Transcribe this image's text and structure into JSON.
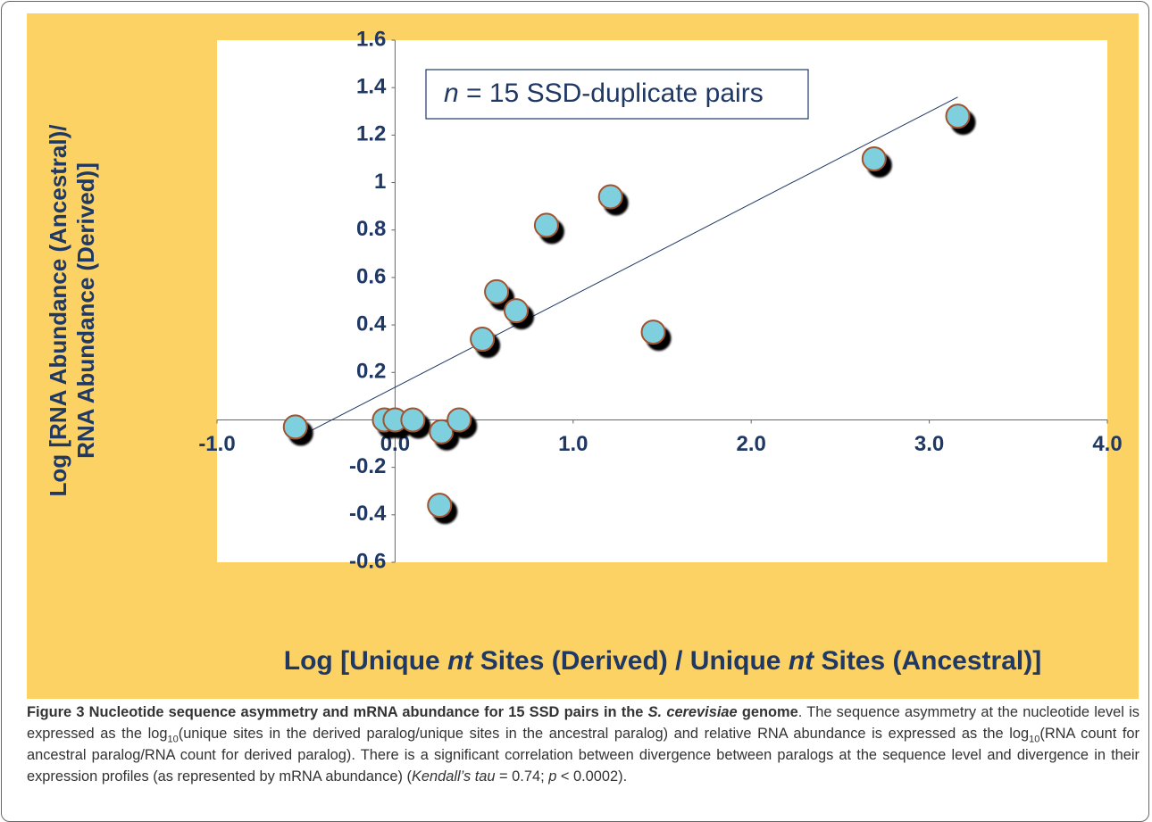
{
  "chart_data": {
    "type": "scatter",
    "annotation": [
      "n",
      " = 15 SSD-duplicate pairs"
    ],
    "x_label": [
      "Log [Unique ",
      "nt",
      " Sites (Derived) / Unique ",
      "nt",
      " Sites (Ancestral)]"
    ],
    "y_label": [
      "Log [RNA Abundance (Ancestral)/",
      "RNA Abundance (Derived)]"
    ],
    "x": [
      -0.56,
      -0.06,
      0,
      0.1,
      0.26,
      0.25,
      0.36,
      0.49,
      0.57,
      0.68,
      0.85,
      1.21,
      1.45,
      2.69,
      3.16
    ],
    "values": [
      -0.03,
      0,
      0,
      0,
      -0.05,
      -0.36,
      0,
      0.34,
      0.54,
      0.46,
      0.82,
      0.94,
      0.37,
      1.1,
      1.28
    ],
    "color": "#7fd0df",
    "edge_color": "#a0522d",
    "trendline": {
      "x": [
        -0.51,
        3.16
      ],
      "y": [
        -0.06,
        1.36
      ],
      "color": "#1f3864"
    },
    "xlim": [
      -1,
      4
    ],
    "xticks": [
      {
        "value": -1,
        "label": "-1.0"
      },
      {
        "value": 0,
        "label": "0.0"
      },
      {
        "value": 1,
        "label": "1.0"
      },
      {
        "value": 2,
        "label": "2.0"
      },
      {
        "value": 3,
        "label": "3.0"
      },
      {
        "value": 4,
        "label": "4.0"
      }
    ],
    "ylim": [
      -0.6,
      1.6
    ],
    "yticks": [
      -0.6,
      -0.4,
      -0.2,
      0,
      0.2,
      0.4,
      0.6,
      0.8,
      1,
      1.2,
      1.4,
      1.6
    ],
    "grid": false
  },
  "caption": [
    "Figure 3 Nucleotide sequence asymmetry and mRNA abundance for 15 SSD pairs in the ",
    "S. cerevisiae",
    " genome",
    ". The sequence asymmetry at the nucleotide level is expressed as the log",
    "10",
    "(unique sites in the derived paralog/unique sites in the ancestral paralog) and relative RNA abundance is expressed as the log",
    "10",
    "(RNA count for ancestral paralog/RNA count for derived paralog). There is a significant correlation between divergence between paralogs at the sequence level and divergence in their expression profiles (as represented by mRNA abundance) (",
    "Kendall’s tau",
    " = 0.74; ",
    "p",
    " < 0.0002)."
  ]
}
